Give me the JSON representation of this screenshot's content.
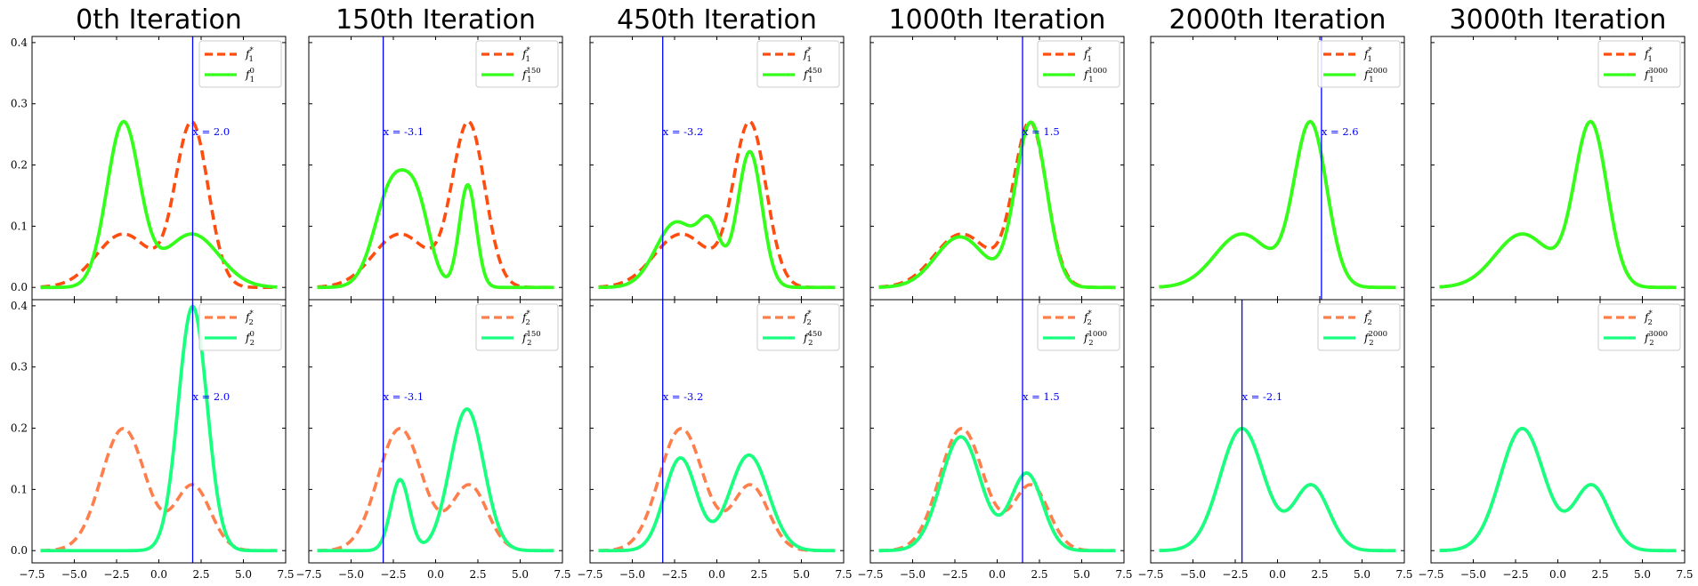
{
  "colors": {
    "target_top": "#ff4c0f",
    "model_top": "#33ff1a",
    "target_bottom": "#ff7f4c",
    "model_bottom": "#19ff80",
    "vline": "#0000ff",
    "annotation": "#0000ff"
  },
  "chart_data": {
    "type": "line",
    "layout": "2 rows x 6 columns; columns share titles; rows share y-axis scale",
    "titles": [
      "0th Iteration",
      "150th Iteration",
      "450th Iteration",
      "1000th Iteration",
      "2000th Iteration",
      "3000th Iteration"
    ],
    "xlim": [
      -7.5,
      7.5
    ],
    "ylim": [
      -0.02,
      0.41
    ],
    "x_ticks": [
      -7.5,
      -5.0,
      -2.5,
      0.0,
      2.5,
      5.0,
      7.5
    ],
    "x_tick_labels": [
      "−7.5",
      "−5.0",
      "−2.5",
      "0.0",
      "2.5",
      "5.0",
      "7.5"
    ],
    "y_ticks": [
      0.0,
      0.1,
      0.2,
      0.3,
      0.4
    ],
    "y_tick_labels": [
      "0.0",
      "0.1",
      "0.2",
      "0.3",
      "0.4"
    ],
    "legend_position": "top-right",
    "grid": false,
    "targets": {
      "top": {
        "name_main": "f",
        "name_sub": "1",
        "name_sup": "*",
        "line_style": "dashed",
        "components": [
          {
            "weight": 0.35,
            "mu": -2.1,
            "sigma": 1.6
          },
          {
            "weight": 0.65,
            "mu": 1.95,
            "sigma": 0.97
          }
        ]
      },
      "bottom": {
        "name_main": "f",
        "name_sub": "2",
        "name_sup": "*",
        "line_style": "dashed",
        "components": [
          {
            "weight": 0.65,
            "mu": -2.1,
            "sigma": 1.3
          },
          {
            "weight": 0.28,
            "mu": 2.0,
            "sigma": 1.05
          }
        ]
      }
    },
    "panels": [
      {
        "row": "top",
        "col": 0,
        "model": {
          "name_main": "f",
          "name_sub": "1",
          "name_sup": "0",
          "line_style": "solid",
          "components": [
            {
              "weight": 0.65,
              "mu": -2.1,
              "sigma": 0.97
            },
            {
              "weight": 0.35,
              "mu": 1.95,
              "sigma": 1.6
            }
          ]
        },
        "vline_x": 2.0,
        "annotation": "x = 2.0"
      },
      {
        "row": "top",
        "col": 1,
        "model": {
          "name_main": "f",
          "name_sub": "1",
          "name_sup": "150",
          "line_style": "solid",
          "components": [
            {
              "weight": 0.45,
              "mu": -2.5,
              "sigma": 1.05
            },
            {
              "weight": 0.18,
              "mu": -1.0,
              "sigma": 0.75
            },
            {
              "weight": 0.21,
              "mu": 1.9,
              "sigma": 0.5
            }
          ]
        },
        "vline_x": -3.1,
        "annotation": "x = -3.1"
      },
      {
        "row": "top",
        "col": 2,
        "model": {
          "name_main": "f",
          "name_sub": "1",
          "name_sup": "450",
          "line_style": "solid",
          "components": [
            {
              "weight": 0.32,
              "mu": -2.4,
              "sigma": 1.2
            },
            {
              "weight": 0.14,
              "mu": -0.4,
              "sigma": 0.65
            },
            {
              "weight": 0.4,
              "mu": 1.95,
              "sigma": 0.72
            }
          ]
        },
        "vline_x": -3.2,
        "annotation": "x = -3.2"
      },
      {
        "row": "top",
        "col": 3,
        "model": {
          "name_main": "f",
          "name_sub": "1",
          "name_sup": "1000",
          "line_style": "solid",
          "components": [
            {
              "weight": 0.3,
              "mu": -2.2,
              "sigma": 1.45
            },
            {
              "weight": 0.62,
              "mu": 2.0,
              "sigma": 0.92
            }
          ]
        },
        "vline_x": 1.5,
        "annotation": "x = 1.5"
      },
      {
        "row": "top",
        "col": 4,
        "model": {
          "name_main": "f",
          "name_sub": "1",
          "name_sup": "2000",
          "line_style": "solid",
          "components": [
            {
              "weight": 0.35,
              "mu": -2.1,
              "sigma": 1.6
            },
            {
              "weight": 0.65,
              "mu": 1.95,
              "sigma": 0.97
            }
          ]
        },
        "vline_x": 2.6,
        "annotation": "x = 2.6"
      },
      {
        "row": "top",
        "col": 5,
        "model": {
          "name_main": "f",
          "name_sub": "1",
          "name_sup": "3000",
          "line_style": "solid",
          "components": [
            {
              "weight": 0.35,
              "mu": -2.1,
              "sigma": 1.6
            },
            {
              "weight": 0.65,
              "mu": 1.95,
              "sigma": 0.97
            }
          ]
        },
        "vline_x": null,
        "annotation": ""
      },
      {
        "row": "bottom",
        "col": 0,
        "model": {
          "name_main": "f",
          "name_sub": "2",
          "name_sup": "0",
          "line_style": "solid",
          "components": [
            {
              "weight": 0.85,
              "mu": 2.0,
              "sigma": 0.85
            }
          ]
        },
        "vline_x": 2.0,
        "annotation": "x = 2.0"
      },
      {
        "row": "bottom",
        "col": 1,
        "model": {
          "name_main": "f",
          "name_sub": "2",
          "name_sup": "150",
          "line_style": "solid",
          "components": [
            {
              "weight": 0.16,
              "mu": -2.1,
              "sigma": 0.55
            },
            {
              "weight": 0.58,
              "mu": 1.85,
              "sigma": 1.0
            }
          ]
        },
        "vline_x": -3.1,
        "annotation": "x = -3.1"
      },
      {
        "row": "bottom",
        "col": 2,
        "model": {
          "name_main": "f",
          "name_sub": "2",
          "name_sup": "450",
          "line_style": "solid",
          "components": [
            {
              "weight": 0.36,
              "mu": -2.15,
              "sigma": 0.95
            },
            {
              "weight": 0.45,
              "mu": 1.9,
              "sigma": 1.15
            }
          ]
        },
        "vline_x": -3.2,
        "annotation": "x = -3.2"
      },
      {
        "row": "bottom",
        "col": 3,
        "model": {
          "name_main": "f",
          "name_sub": "2",
          "name_sup": "1000",
          "line_style": "solid",
          "components": [
            {
              "weight": 0.55,
              "mu": -2.15,
              "sigma": 1.18
            },
            {
              "weight": 0.3,
              "mu": 1.75,
              "sigma": 0.95
            }
          ]
        },
        "vline_x": 1.5,
        "annotation": "x = 1.5"
      },
      {
        "row": "bottom",
        "col": 4,
        "model": {
          "name_main": "f",
          "name_sub": "2",
          "name_sup": "2000",
          "line_style": "solid",
          "components": [
            {
              "weight": 0.65,
              "mu": -2.1,
              "sigma": 1.3
            },
            {
              "weight": 0.28,
              "mu": 2.0,
              "sigma": 1.05
            }
          ]
        },
        "vline_x": -2.1,
        "annotation": "x = -2.1"
      },
      {
        "row": "bottom",
        "col": 5,
        "model": {
          "name_main": "f",
          "name_sub": "2",
          "name_sup": "3000",
          "line_style": "solid",
          "components": [
            {
              "weight": 0.65,
              "mu": -2.1,
              "sigma": 1.3
            },
            {
              "weight": 0.28,
              "mu": 2.0,
              "sigma": 1.05
            }
          ]
        },
        "vline_x": null,
        "annotation": ""
      }
    ]
  }
}
